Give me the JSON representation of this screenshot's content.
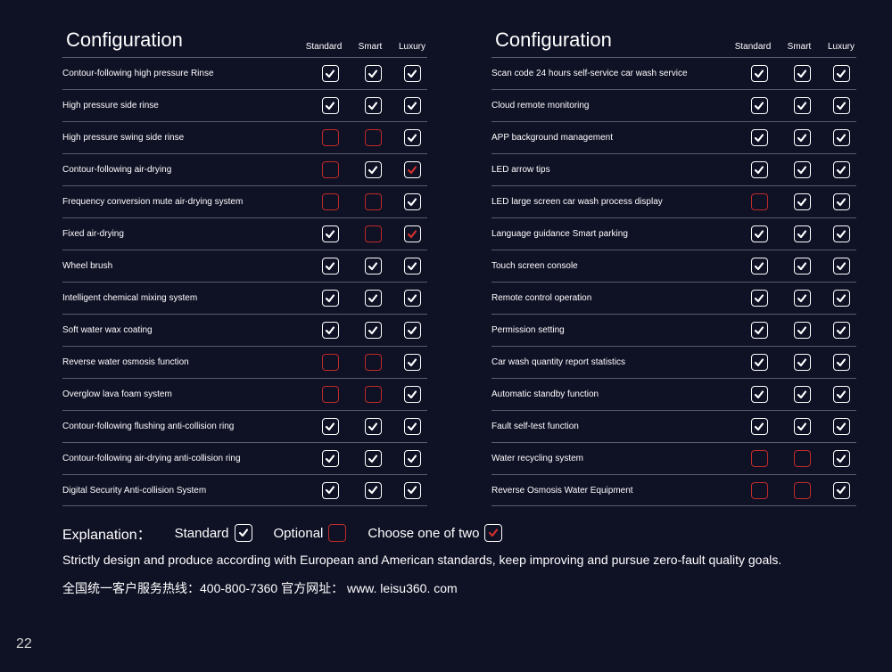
{
  "title": "Configuration",
  "tiers": [
    "Standard",
    "Smart",
    "Luxury"
  ],
  "colors": {
    "bg": "#0f1125",
    "text": "#ffffff",
    "divider": "#5a5c6a",
    "box_white": "#ffffff",
    "box_red": "#bf2b2b",
    "tick_white": "#ffffff",
    "tick_red": "#d2302f"
  },
  "cell_values": [
    "std",
    "opt",
    "two"
  ],
  "cell_legend": {
    "std": "white box + white tick",
    "opt": "red box, empty",
    "two": "white box + red tick"
  },
  "left": [
    {
      "label": "Contour-following high pressure Rinse",
      "cells": [
        "std",
        "std",
        "std"
      ]
    },
    {
      "label": "High pressure side rinse",
      "cells": [
        "std",
        "std",
        "std"
      ]
    },
    {
      "label": "High pressure swing side rinse",
      "cells": [
        "opt",
        "opt",
        "std"
      ]
    },
    {
      "label": "Contour-following air-drying",
      "cells": [
        "opt",
        "std",
        "two"
      ]
    },
    {
      "label": "Frequency conversion mute air-drying system",
      "cells": [
        "opt",
        "opt",
        "std"
      ]
    },
    {
      "label": "Fixed air-drying",
      "cells": [
        "std",
        "opt",
        "two"
      ]
    },
    {
      "label": "Wheel brush",
      "cells": [
        "std",
        "std",
        "std"
      ]
    },
    {
      "label": "Intelligent chemical mixing system",
      "cells": [
        "std",
        "std",
        "std"
      ]
    },
    {
      "label": "Soft water wax coating",
      "cells": [
        "std",
        "std",
        "std"
      ]
    },
    {
      "label": "Reverse water osmosis function",
      "cells": [
        "opt",
        "opt",
        "std"
      ]
    },
    {
      "label": "Overglow lava foam system",
      "cells": [
        "opt",
        "opt",
        "std"
      ]
    },
    {
      "label": "Contour-following flushing anti-collision ring",
      "cells": [
        "std",
        "std",
        "std"
      ]
    },
    {
      "label": "Contour-following air-drying anti-collision ring",
      "cells": [
        "std",
        "std",
        "std"
      ]
    },
    {
      "label": "Digital Security Anti-collision System",
      "cells": [
        "std",
        "std",
        "std"
      ]
    }
  ],
  "right": [
    {
      "label": "Scan code 24 hours self-service car wash service",
      "cells": [
        "std",
        "std",
        "std"
      ]
    },
    {
      "label": "Cloud remote monitoring",
      "cells": [
        "std",
        "std",
        "std"
      ]
    },
    {
      "label": "APP background management",
      "cells": [
        "std",
        "std",
        "std"
      ]
    },
    {
      "label": "LED arrow tips",
      "cells": [
        "std",
        "std",
        "std"
      ]
    },
    {
      "label": "LED large screen car wash process display",
      "cells": [
        "opt",
        "std",
        "std"
      ]
    },
    {
      "label": "Language guidance Smart parking",
      "cells": [
        "std",
        "std",
        "std"
      ]
    },
    {
      "label": "Touch screen console",
      "cells": [
        "std",
        "std",
        "std"
      ]
    },
    {
      "label": "Remote control operation",
      "cells": [
        "std",
        "std",
        "std"
      ]
    },
    {
      "label": "Permission setting",
      "cells": [
        "std",
        "std",
        "std"
      ]
    },
    {
      "label": "Car wash quantity report statistics",
      "cells": [
        "std",
        "std",
        "std"
      ]
    },
    {
      "label": "Automatic standby function",
      "cells": [
        "std",
        "std",
        "std"
      ]
    },
    {
      "label": "Fault self-test function",
      "cells": [
        "std",
        "std",
        "std"
      ]
    },
    {
      "label": "Water recycling system",
      "cells": [
        "opt",
        "opt",
        "std"
      ]
    },
    {
      "label": "Reverse Osmosis Water Equipment",
      "cells": [
        "opt",
        "opt",
        "std"
      ]
    }
  ],
  "explanation": {
    "label": "Explanation：",
    "items": [
      {
        "text": "Standard",
        "kind": "std"
      },
      {
        "text": "Optional",
        "kind": "opt"
      },
      {
        "text": "Choose one of two",
        "kind": "two"
      }
    ],
    "line2": "Strictly design and produce according with European and American standards, keep improving and pursue zero-fault quality goals.",
    "line3": "全国统一客户服务热线：400-800-7360 官方网址： www. leisu360. com"
  },
  "page_number": "22"
}
